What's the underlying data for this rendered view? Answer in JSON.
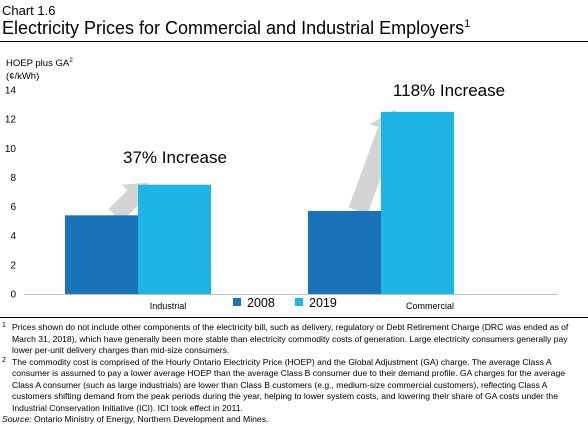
{
  "chart_label": "Chart 1.6",
  "chart_title": "Electricity Prices for Commercial and Industrial Employers",
  "chart_title_sup": "1",
  "colors": {
    "s2008": "#1a73b8",
    "s2019": "#1cb5e6",
    "arrow": "#d4d4d4"
  },
  "chart_data": {
    "type": "bar",
    "ylabel_line1": "HOEP plus GA",
    "ylabel_sup": "2",
    "ylabel_line2": "(¢/kWh)",
    "ylim": [
      0,
      14
    ],
    "yticks": [
      "0",
      "2",
      "4",
      "6",
      "8",
      "10",
      "12",
      "14"
    ],
    "categories": [
      "Industrial",
      "Commercial"
    ],
    "series": [
      {
        "name": "2008",
        "values": [
          5.4,
          5.7
        ]
      },
      {
        "name": "2019",
        "values": [
          7.5,
          12.5
        ]
      }
    ],
    "annotations": [
      "37% Increase",
      "118% Increase"
    ],
    "legend_position": "bottom-center"
  },
  "notes": [
    {
      "marker": "1",
      "text": "Prices shown do not include other components of the electricity bill, such as delivery, regulatory or Debt Retirement Charge (DRC was ended as of March 31, 2018), which have generally been more stable than electricity commodity costs of generation. Large electricity consumers generally pay lower per-unit delivery charges than mid-size consumers."
    },
    {
      "marker": "2",
      "text": "The commodity cost is comprised of the Hourly Ontario Electricity Price (HOEP) and the Global Adjustment (GA) charge. The average Class A consumer is assumed to pay a lower average HOEP than the average Class B consumer due to their demand profile. GA charges for the average Class A consumer (such as large industrials) are lower than Class B customers (e.g., medium-size commercial customers), reflecting Class A customers shifting demand from the peak periods during the year, helping to lower system costs, and lowering their share of GA costs under the Industrial Conservation Initiative (ICI). ICI took effect in 2011."
    }
  ],
  "source_label": "Source:",
  "source_text": " Ontario Ministry of Energy, Northern Development and Mines."
}
